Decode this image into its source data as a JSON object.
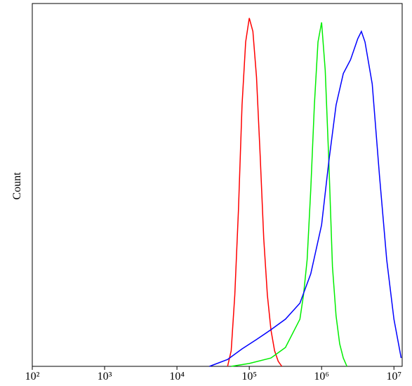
{
  "chart_data": {
    "type": "line",
    "ylabel": "Count",
    "xscale": "log",
    "xlim": [
      100,
      13000000
    ],
    "ylim": [
      0,
      100
    ],
    "xticks": [
      {
        "value": 100,
        "label": "10²"
      },
      {
        "value": 1000,
        "label": "10³"
      },
      {
        "value": 10000,
        "label": "10⁴"
      },
      {
        "value": 100000,
        "label": "10⁵"
      },
      {
        "value": 1000000,
        "label": "10⁶"
      },
      {
        "value": 10000000,
        "label": "10⁷"
      }
    ],
    "series": [
      {
        "color": "#ff0000",
        "x": [
          50119,
          56234,
          63096,
          70795,
          79433,
          89125,
          100000,
          112202,
          125893,
          141254,
          158489,
          177828,
          199526,
          223872,
          251189,
          281838
        ],
        "values": [
          0,
          4.3,
          19.7,
          42.9,
          72,
          89.4,
          96,
          92.3,
          79.7,
          58.4,
          35.2,
          19.7,
          10,
          4.3,
          1.4,
          0
        ]
      },
      {
        "color": "#00ee00",
        "x": [
          56234,
          100000,
          199526,
          316228,
          501187,
          562341,
          630957,
          707946,
          794328,
          891251,
          1000000,
          1122018,
          1258925,
          1412538,
          1584893,
          1778279,
          1995262,
          2238721
        ],
        "values": [
          0,
          0.8,
          2.3,
          5.2,
          13,
          19.7,
          29.4,
          48.7,
          72,
          89.4,
          94.8,
          81.6,
          56.5,
          27.5,
          13.9,
          6.2,
          2.3,
          0
        ]
      },
      {
        "color": "#0000ff",
        "x": [
          28184,
          50119,
          79433,
          125893,
          199526,
          316228,
          501187,
          707946,
          1000000,
          1258925,
          1584893,
          1995262,
          2511886,
          3162278,
          3548134,
          3981072,
          5011872,
          6309573,
          7943282,
          10000000,
          12589254
        ],
        "values": [
          0,
          1.9,
          4.8,
          7.4,
          10.1,
          13,
          17.4,
          25.5,
          39,
          56.5,
          72,
          80.7,
          84.5,
          90.3,
          92.3,
          89.4,
          77.8,
          52.6,
          29.4,
          13,
          2.3
        ]
      }
    ]
  }
}
